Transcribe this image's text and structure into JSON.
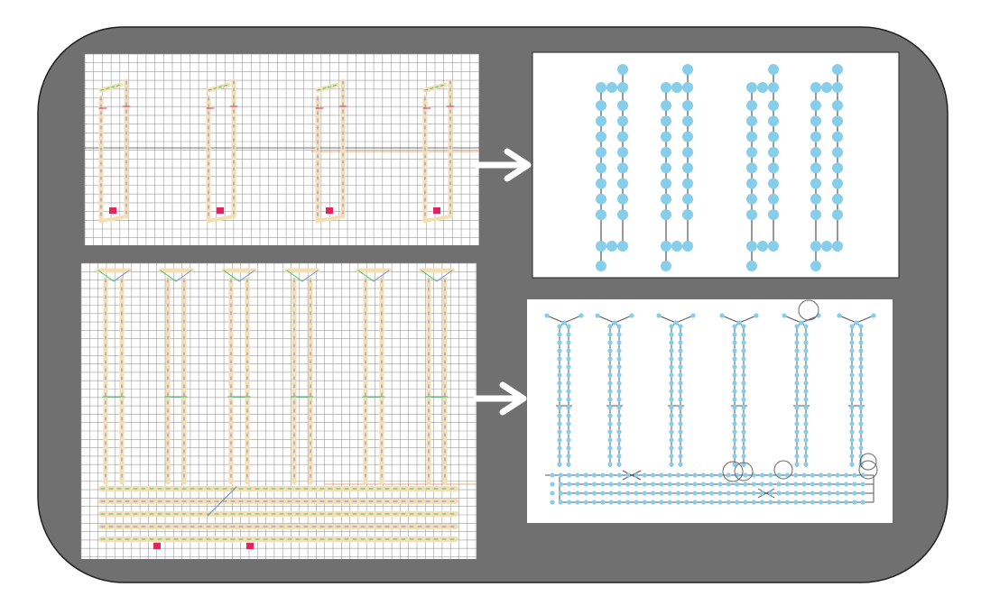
{
  "colors": {
    "frame_fill": "#707070",
    "frame_stroke": "#1f1f1f",
    "panel_bg": "#ffffff",
    "node": "#87ceeb",
    "edge": "#555555",
    "grid": "#9c9c9c",
    "arrow": "#ffffff",
    "layout_yellow": "#f5deb3",
    "layout_blue": "#6f8fd8",
    "layout_red": "#e0245e",
    "layout_green": "#39c36b",
    "layout_orange": "#f08a4b",
    "highlight_circle": "#666666"
  },
  "panels": [
    {
      "name": "layout-top",
      "kind": "circuit-layout"
    },
    {
      "name": "graph-top",
      "kind": "node-graph"
    },
    {
      "name": "layout-bottom",
      "kind": "circuit-layout"
    },
    {
      "name": "graph-bottom",
      "kind": "node-graph"
    }
  ],
  "arrows": [
    {
      "name": "arrow-top",
      "icon": "right-arrow-icon"
    },
    {
      "name": "arrow-bottom",
      "icon": "right-arrow-icon"
    }
  ]
}
